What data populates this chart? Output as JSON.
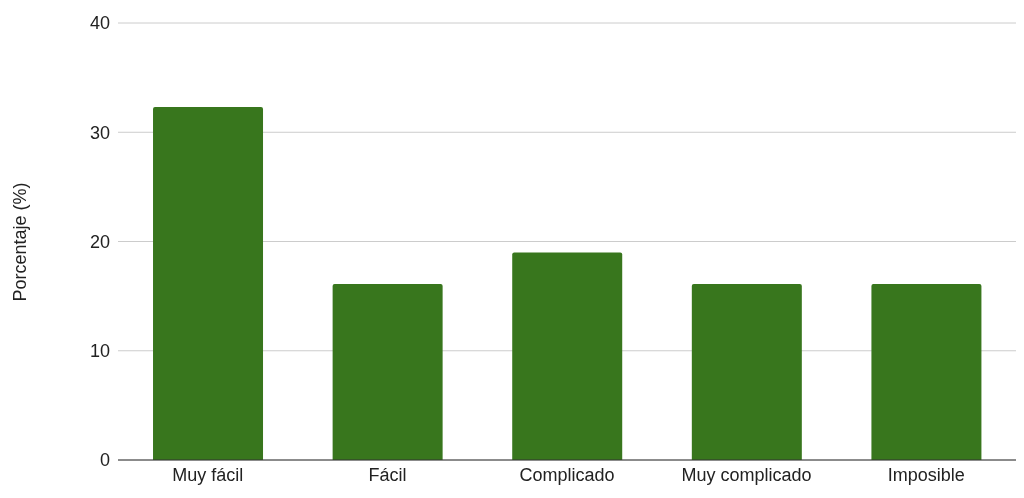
{
  "chart_data": {
    "type": "bar",
    "ylabel": "Porcentaje (%)",
    "categories": [
      "Muy fácil",
      "Fácil",
      "Complicado",
      "Muy complicado",
      "Imposible"
    ],
    "values": [
      32.3,
      16.1,
      19.0,
      16.1,
      16.1
    ],
    "color": "#38761d",
    "ylim": [
      0,
      40
    ],
    "yticks": [
      0,
      10,
      20,
      30,
      40
    ],
    "grid": "y"
  }
}
